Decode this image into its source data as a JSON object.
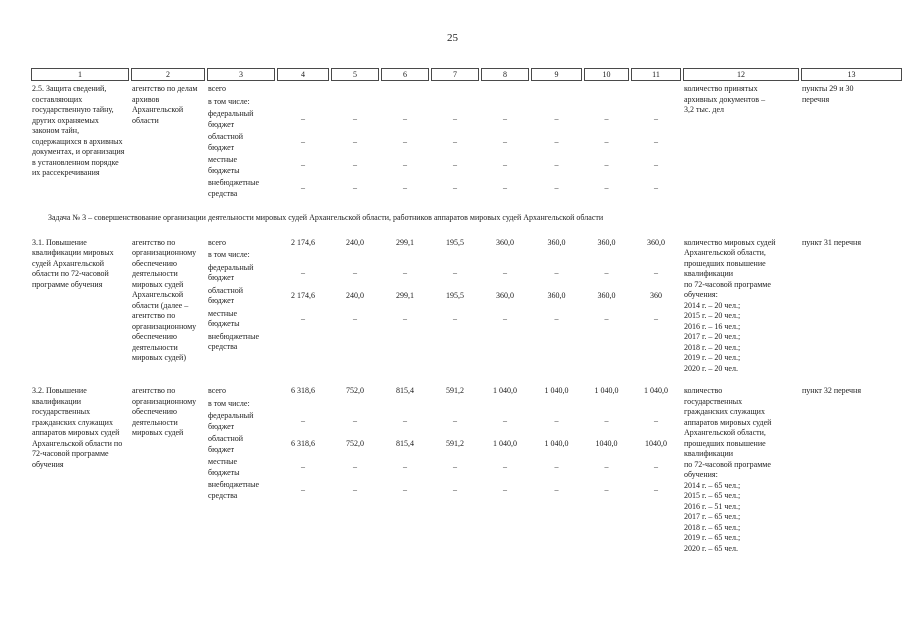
{
  "page": {
    "number": "25"
  },
  "table": {
    "header_cols": [
      "1",
      "2",
      "3",
      "4",
      "5",
      "6",
      "7",
      "8",
      "9",
      "10",
      "11",
      "12",
      "13"
    ],
    "rows": [
      {
        "num_title": "2.5. Защита сведений, составляющих государственную тайну, других охраняемых законом тайн, содержащихся в архивных документах, и организация в установленном порядке их рассекречивания",
        "executor": "агентство по делам архивов Архангельской области",
        "sub_rows": [
          {
            "label": "всего",
            "values": [
              "",
              "",
              "",
              "",
              "",
              "",
              "",
              ""
            ]
          },
          {
            "label": "в том числе:",
            "values": [
              "",
              "",
              "",
              "",
              "",
              "",
              "",
              ""
            ]
          },
          {
            "label": "федеральный\nбюджет",
            "values": [
              "–",
              "–",
              "–",
              "–",
              "–",
              "–",
              "–",
              "–"
            ]
          },
          {
            "label": "областной\nбюджет",
            "values": [
              "–",
              "–",
              "–",
              "–",
              "–",
              "–",
              "–",
              "–"
            ]
          },
          {
            "label": "местные\nбюджеты",
            "values": [
              "–",
              "–",
              "–",
              "–",
              "–",
              "–",
              "–",
              "–"
            ]
          },
          {
            "label": "внебюджетные\nсредства",
            "values": [
              "–",
              "–",
              "–",
              "–",
              "–",
              "–",
              "–",
              "–"
            ]
          }
        ],
        "indicator_lines": [
          "количество принятых",
          "архивных документов –",
          "3,2 тыс. дел"
        ],
        "ref_lines": [
          "пункты 29 и 30",
          "перечня"
        ]
      },
      {
        "section_heading": "Задача № 3 –  совершенствование организации деятельности мировых судей Архангельской области, работников аппаратов мировых судей Архангельской области",
        "num_title": "3.1. Повышение квалификации мировых судей Архангельской области по 72-часовой программе обучения",
        "executor": "агентство по организационному обеспечению деятельности мировых судей Архангельской области (далее – агентство по организационному обеспечению деятельности мировых судей)",
        "sub_rows": [
          {
            "label": "всего",
            "values": [
              "2 174,6",
              "240,0",
              "299,1",
              "195,5",
              "360,0",
              "360,0",
              "360,0",
              "360,0"
            ]
          },
          {
            "label": "в том числе:",
            "values": [
              "",
              "",
              "",
              "",
              "",
              "",
              "",
              ""
            ]
          },
          {
            "label": "федеральный\nбюджет",
            "values": [
              "–",
              "–",
              "–",
              "–",
              "–",
              "–",
              "–",
              "–"
            ]
          },
          {
            "label": "областной\nбюджет",
            "values": [
              "2 174,6",
              "240,0",
              "299,1",
              "195,5",
              "360,0",
              "360,0",
              "360,0",
              "360"
            ]
          },
          {
            "label": "местные\nбюджеты",
            "values": [
              "–",
              "–",
              "–",
              "–",
              "–",
              "–",
              "–",
              "–"
            ]
          },
          {
            "label": "внебюджетные\nсредства",
            "values": [
              "",
              "",
              "",
              "",
              "",
              "",
              "",
              ""
            ]
          }
        ],
        "indicator_lines": [
          "количество мировых судей",
          "Архангельской области,",
          "прошедших повышение",
          "квалификации",
          "по 72-часовой программе",
          "обучения:",
          "2014 г. – 20 чел.;",
          "2015 г. – 20 чел.;",
          "2016 г. – 16 чел.;",
          "2017 г. – 20 чел.;",
          "2018 г. – 20 чел.;",
          "2019 г. – 20 чел.;",
          "2020 г. – 20 чел."
        ],
        "ref_lines": [
          "пункт 31 перечня"
        ]
      },
      {
        "num_title": "3.2. Повышение квалификации государственных гражданских служащих аппаратов мировых судей Архангельской области по 72-часовой программе обучения",
        "executor": "агентство по организационному обеспечению деятельности мировых судей",
        "sub_rows": [
          {
            "label": "всего",
            "values": [
              "6 318,6",
              "752,0",
              "815,4",
              "591,2",
              "1 040,0",
              "1 040,0",
              "1 040,0",
              "1 040,0"
            ]
          },
          {
            "label": "в том числе:",
            "values": [
              "",
              "",
              "",
              "",
              "",
              "",
              "",
              ""
            ]
          },
          {
            "label": "федеральный\nбюджет",
            "values": [
              "–",
              "–",
              "–",
              "–",
              "–",
              "–",
              "–",
              "–"
            ]
          },
          {
            "label": "областной\nбюджет",
            "values": [
              "6 318,6",
              "752,0",
              "815,4",
              "591,2",
              "1 040,0",
              "1 040,0",
              "1040,0",
              "1040,0"
            ]
          },
          {
            "label": "местные\nбюджеты",
            "values": [
              "–",
              "–",
              "–",
              "–",
              "–",
              "–",
              "–",
              "–"
            ]
          },
          {
            "label": "внебюджетные\nсредства",
            "values": [
              "–",
              "–",
              "–",
              "–",
              "–",
              "–",
              "–",
              "–"
            ]
          }
        ],
        "indicator_lines": [
          "количество",
          "государственных",
          "гражданских служащих",
          "аппаратов мировых судей",
          "Архангельской области,",
          "прошедших повышение",
          "квалификации",
          "по 72-часовой программе",
          "обучения:",
          "2014 г. – 65 чел.;",
          "2015 г. – 65 чел.;",
          "2016 г. – 51 чел.;",
          "2017 г. – 65 чел.;",
          "2018 г. – 65 чел.;",
          "2019 г. – 65 чел.;",
          "2020 г. – 65 чел."
        ],
        "ref_lines": [
          "пункт 32 перечня"
        ]
      }
    ]
  }
}
